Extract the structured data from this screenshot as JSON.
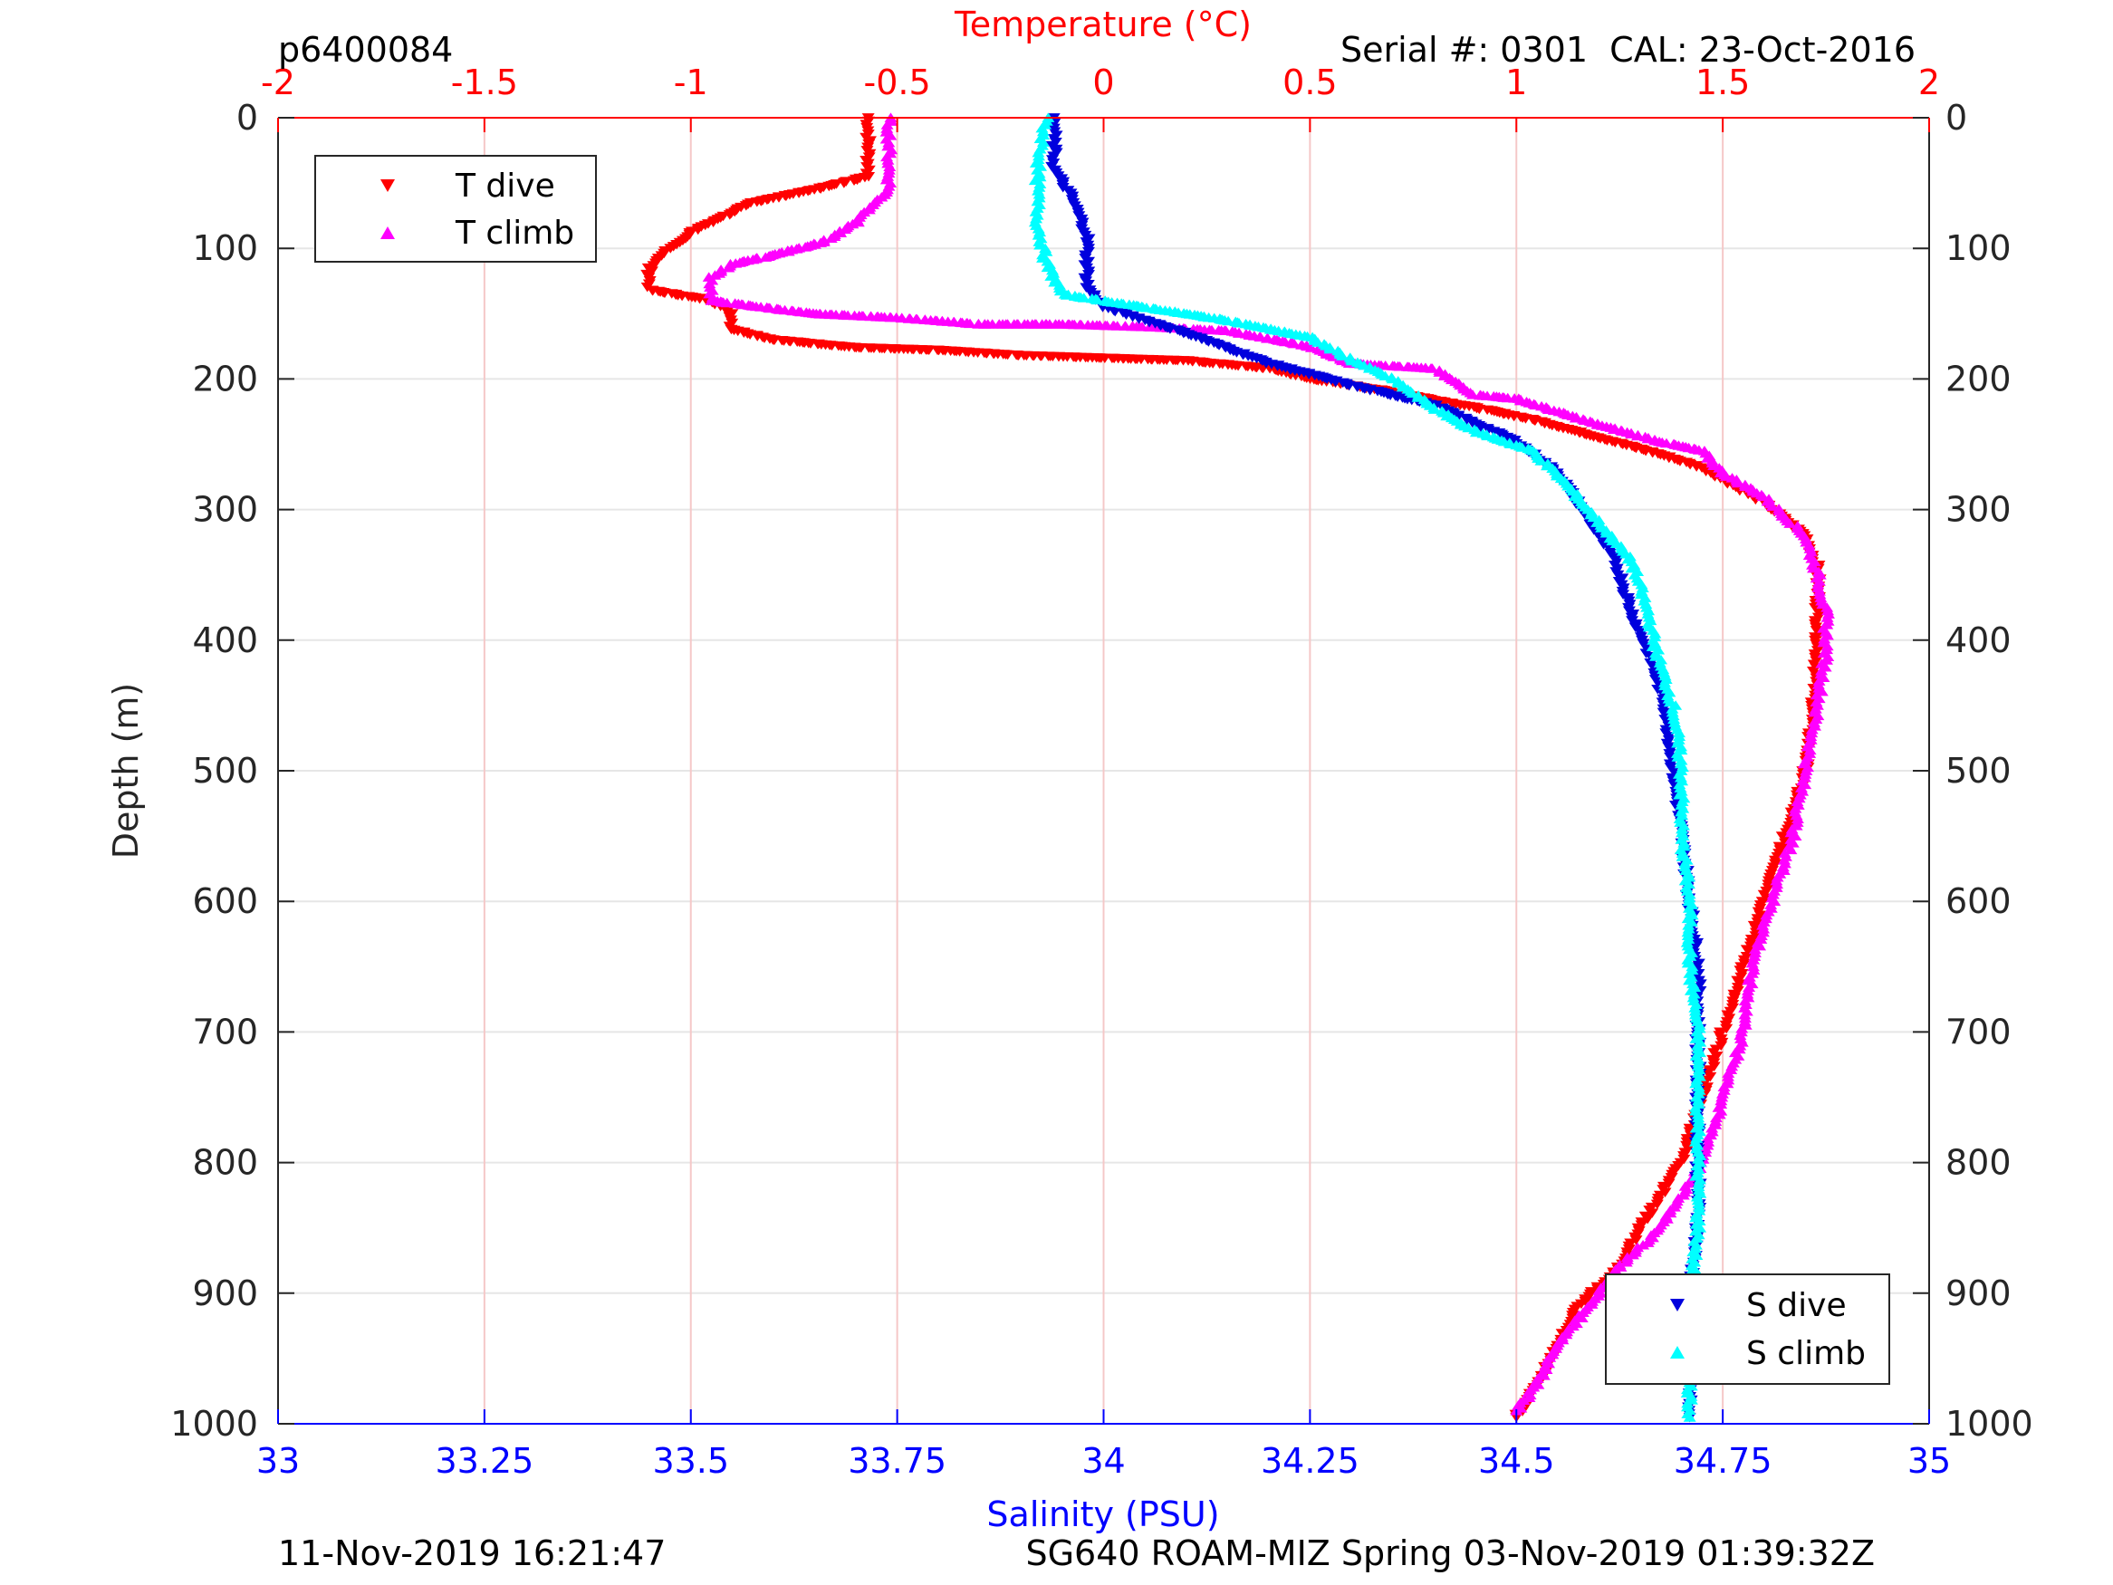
{
  "header": {
    "left_id": "p6400084",
    "right_info": "Serial #: 0301  CAL: 23-Oct-2016"
  },
  "footer": {
    "left": "11-Nov-2019 16:21:47",
    "right": "SG640 ROAM-MIZ Spring 03-Nov-2019 01:39:32Z"
  },
  "colors": {
    "temperature_axis": "#ff0000",
    "salinity_axis": "#0000ff",
    "t_dive": "#ff0000",
    "t_climb": "#ff00ff",
    "s_dive": "#0000dd",
    "s_climb": "#00ffff",
    "grid": "#e6e6e6",
    "temp_grid": "#f5c8c8"
  },
  "chart_data": {
    "type": "scatter",
    "y_axis": {
      "label": "Depth (m)",
      "range": [
        0,
        1000
      ],
      "reversed": true,
      "ticks": [
        "0",
        "100",
        "200",
        "300",
        "400",
        "500",
        "600",
        "700",
        "800",
        "900",
        "1000"
      ]
    },
    "x_top_axis": {
      "label": "Temperature (°C)",
      "range": [
        -2,
        2
      ],
      "ticks": [
        "-2",
        "-1.5",
        "-1",
        "-0.5",
        "0",
        "0.5",
        "1",
        "1.5",
        "2"
      ]
    },
    "x_bottom_axis": {
      "label": "Salinity (PSU)",
      "range": [
        33,
        35
      ],
      "ticks": [
        "33",
        "33.25",
        "33.5",
        "33.75",
        "34",
        "34.25",
        "34.5",
        "34.75",
        "35"
      ]
    },
    "legend_top": {
      "position": "top-left",
      "entries": [
        "T dive",
        "T climb"
      ]
    },
    "legend_bottom": {
      "position": "bottom-right",
      "entries": [
        "S dive",
        "S climb"
      ]
    },
    "series": [
      {
        "name": "T dive",
        "axis": "temperature",
        "marker": "triangle-down",
        "points": [
          [
            -0.57,
            0
          ],
          [
            -0.57,
            20
          ],
          [
            -0.57,
            45
          ],
          [
            -0.7,
            55
          ],
          [
            -0.85,
            65
          ],
          [
            -0.95,
            80
          ],
          [
            -1.0,
            88
          ],
          [
            -1.05,
            100
          ],
          [
            -1.1,
            115
          ],
          [
            -1.1,
            132
          ],
          [
            -0.95,
            140
          ],
          [
            -0.9,
            150
          ],
          [
            -0.9,
            162
          ],
          [
            -0.8,
            170
          ],
          [
            -0.6,
            176
          ],
          [
            -0.4,
            178
          ],
          [
            -0.2,
            182
          ],
          [
            0.0,
            184
          ],
          [
            0.2,
            186
          ],
          [
            0.4,
            192
          ],
          [
            0.5,
            200
          ],
          [
            0.7,
            210
          ],
          [
            0.9,
            222
          ],
          [
            1.05,
            232
          ],
          [
            1.2,
            245
          ],
          [
            1.35,
            258
          ],
          [
            1.45,
            268
          ],
          [
            1.6,
            295
          ],
          [
            1.7,
            320
          ],
          [
            1.73,
            345
          ],
          [
            1.73,
            375
          ],
          [
            1.73,
            400
          ],
          [
            1.72,
            450
          ],
          [
            1.7,
            500
          ],
          [
            1.65,
            550
          ],
          [
            1.6,
            600
          ],
          [
            1.55,
            650
          ],
          [
            1.5,
            700
          ],
          [
            1.45,
            750
          ],
          [
            1.4,
            800
          ],
          [
            1.3,
            850
          ],
          [
            1.25,
            880
          ],
          [
            1.15,
            910
          ],
          [
            1.1,
            940
          ],
          [
            1.05,
            970
          ],
          [
            1.0,
            995
          ]
        ]
      },
      {
        "name": "T climb",
        "axis": "temperature",
        "marker": "triangle-up",
        "points": [
          [
            -0.52,
            0
          ],
          [
            -0.52,
            30
          ],
          [
            -0.52,
            55
          ],
          [
            -0.6,
            80
          ],
          [
            -0.68,
            95
          ],
          [
            -0.8,
            105
          ],
          [
            -0.9,
            112
          ],
          [
            -0.95,
            122
          ],
          [
            -0.95,
            140
          ],
          [
            -0.7,
            150
          ],
          [
            -0.5,
            153
          ],
          [
            -0.3,
            158
          ],
          [
            -0.1,
            158
          ],
          [
            0.1,
            160
          ],
          [
            0.3,
            163
          ],
          [
            0.5,
            175
          ],
          [
            0.6,
            188
          ],
          [
            0.8,
            192
          ],
          [
            0.9,
            212
          ],
          [
            1.0,
            215
          ],
          [
            1.1,
            225
          ],
          [
            1.2,
            235
          ],
          [
            1.35,
            248
          ],
          [
            1.45,
            255
          ],
          [
            1.5,
            272
          ],
          [
            1.6,
            290
          ],
          [
            1.7,
            320
          ],
          [
            1.73,
            350
          ],
          [
            1.75,
            380
          ],
          [
            1.75,
            410
          ],
          [
            1.73,
            450
          ],
          [
            1.7,
            500
          ],
          [
            1.67,
            550
          ],
          [
            1.62,
            600
          ],
          [
            1.57,
            650
          ],
          [
            1.55,
            700
          ],
          [
            1.5,
            750
          ],
          [
            1.45,
            800
          ],
          [
            1.35,
            850
          ],
          [
            1.25,
            880
          ],
          [
            1.2,
            900
          ],
          [
            1.1,
            940
          ],
          [
            1.05,
            970
          ],
          [
            1.0,
            990
          ]
        ]
      },
      {
        "name": "S dive",
        "axis": "salinity",
        "marker": "triangle-down",
        "points": [
          [
            33.94,
            0
          ],
          [
            33.94,
            40
          ],
          [
            33.96,
            60
          ],
          [
            33.98,
            90
          ],
          [
            33.98,
            110
          ],
          [
            33.98,
            130
          ],
          [
            34.0,
            145
          ],
          [
            34.1,
            165
          ],
          [
            34.2,
            188
          ],
          [
            34.3,
            205
          ],
          [
            34.4,
            220
          ],
          [
            34.5,
            248
          ],
          [
            34.55,
            272
          ],
          [
            34.58,
            300
          ],
          [
            34.62,
            340
          ],
          [
            34.64,
            380
          ],
          [
            34.66,
            410
          ],
          [
            34.68,
            450
          ],
          [
            34.69,
            500
          ],
          [
            34.7,
            550
          ],
          [
            34.71,
            600
          ],
          [
            34.72,
            650
          ],
          [
            34.72,
            700
          ],
          [
            34.72,
            750
          ],
          [
            34.72,
            800
          ],
          [
            34.72,
            850
          ],
          [
            34.71,
            900
          ],
          [
            34.71,
            950
          ],
          [
            34.71,
            995
          ]
        ]
      },
      {
        "name": "S climb",
        "axis": "salinity",
        "marker": "triangle-up",
        "points": [
          [
            33.93,
            0
          ],
          [
            33.92,
            40
          ],
          [
            33.92,
            80
          ],
          [
            33.93,
            110
          ],
          [
            33.95,
            135
          ],
          [
            34.05,
            145
          ],
          [
            34.15,
            155
          ],
          [
            34.25,
            168
          ],
          [
            34.3,
            185
          ],
          [
            34.35,
            200
          ],
          [
            34.4,
            222
          ],
          [
            34.45,
            240
          ],
          [
            34.52,
            255
          ],
          [
            34.56,
            280
          ],
          [
            34.6,
            310
          ],
          [
            34.64,
            340
          ],
          [
            34.66,
            380
          ],
          [
            34.67,
            410
          ],
          [
            34.69,
            450
          ],
          [
            34.7,
            500
          ],
          [
            34.7,
            550
          ],
          [
            34.71,
            600
          ],
          [
            34.71,
            650
          ],
          [
            34.72,
            700
          ],
          [
            34.72,
            750
          ],
          [
            34.72,
            800
          ],
          [
            34.72,
            850
          ],
          [
            34.71,
            900
          ],
          [
            34.71,
            950
          ],
          [
            34.71,
            995
          ]
        ]
      }
    ]
  }
}
